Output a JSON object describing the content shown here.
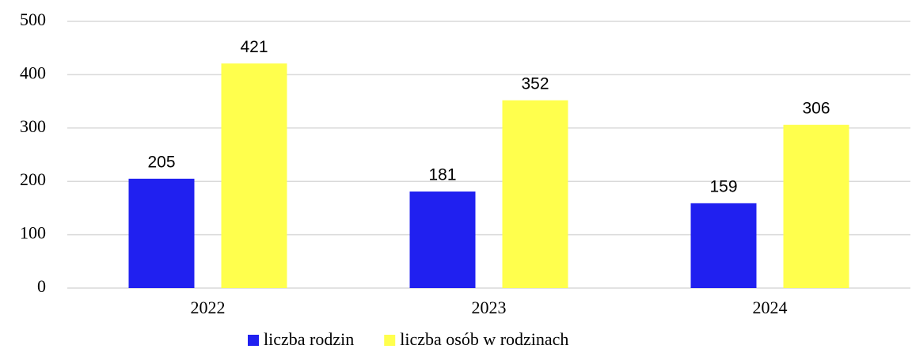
{
  "chart_data": {
    "type": "bar",
    "categories": [
      "2022",
      "2023",
      "2024"
    ],
    "series": [
      {
        "name": "liczba rodzin",
        "color": "#2020f0",
        "values": [
          205,
          181,
          159
        ]
      },
      {
        "name": "liczba osób w rodzinach",
        "color": "#ffff4d",
        "values": [
          421,
          352,
          306
        ]
      }
    ],
    "ylim": [
      0,
      500
    ],
    "yticks": [
      0,
      100,
      200,
      300,
      400,
      500
    ],
    "grid": true,
    "legend": "bottom"
  }
}
